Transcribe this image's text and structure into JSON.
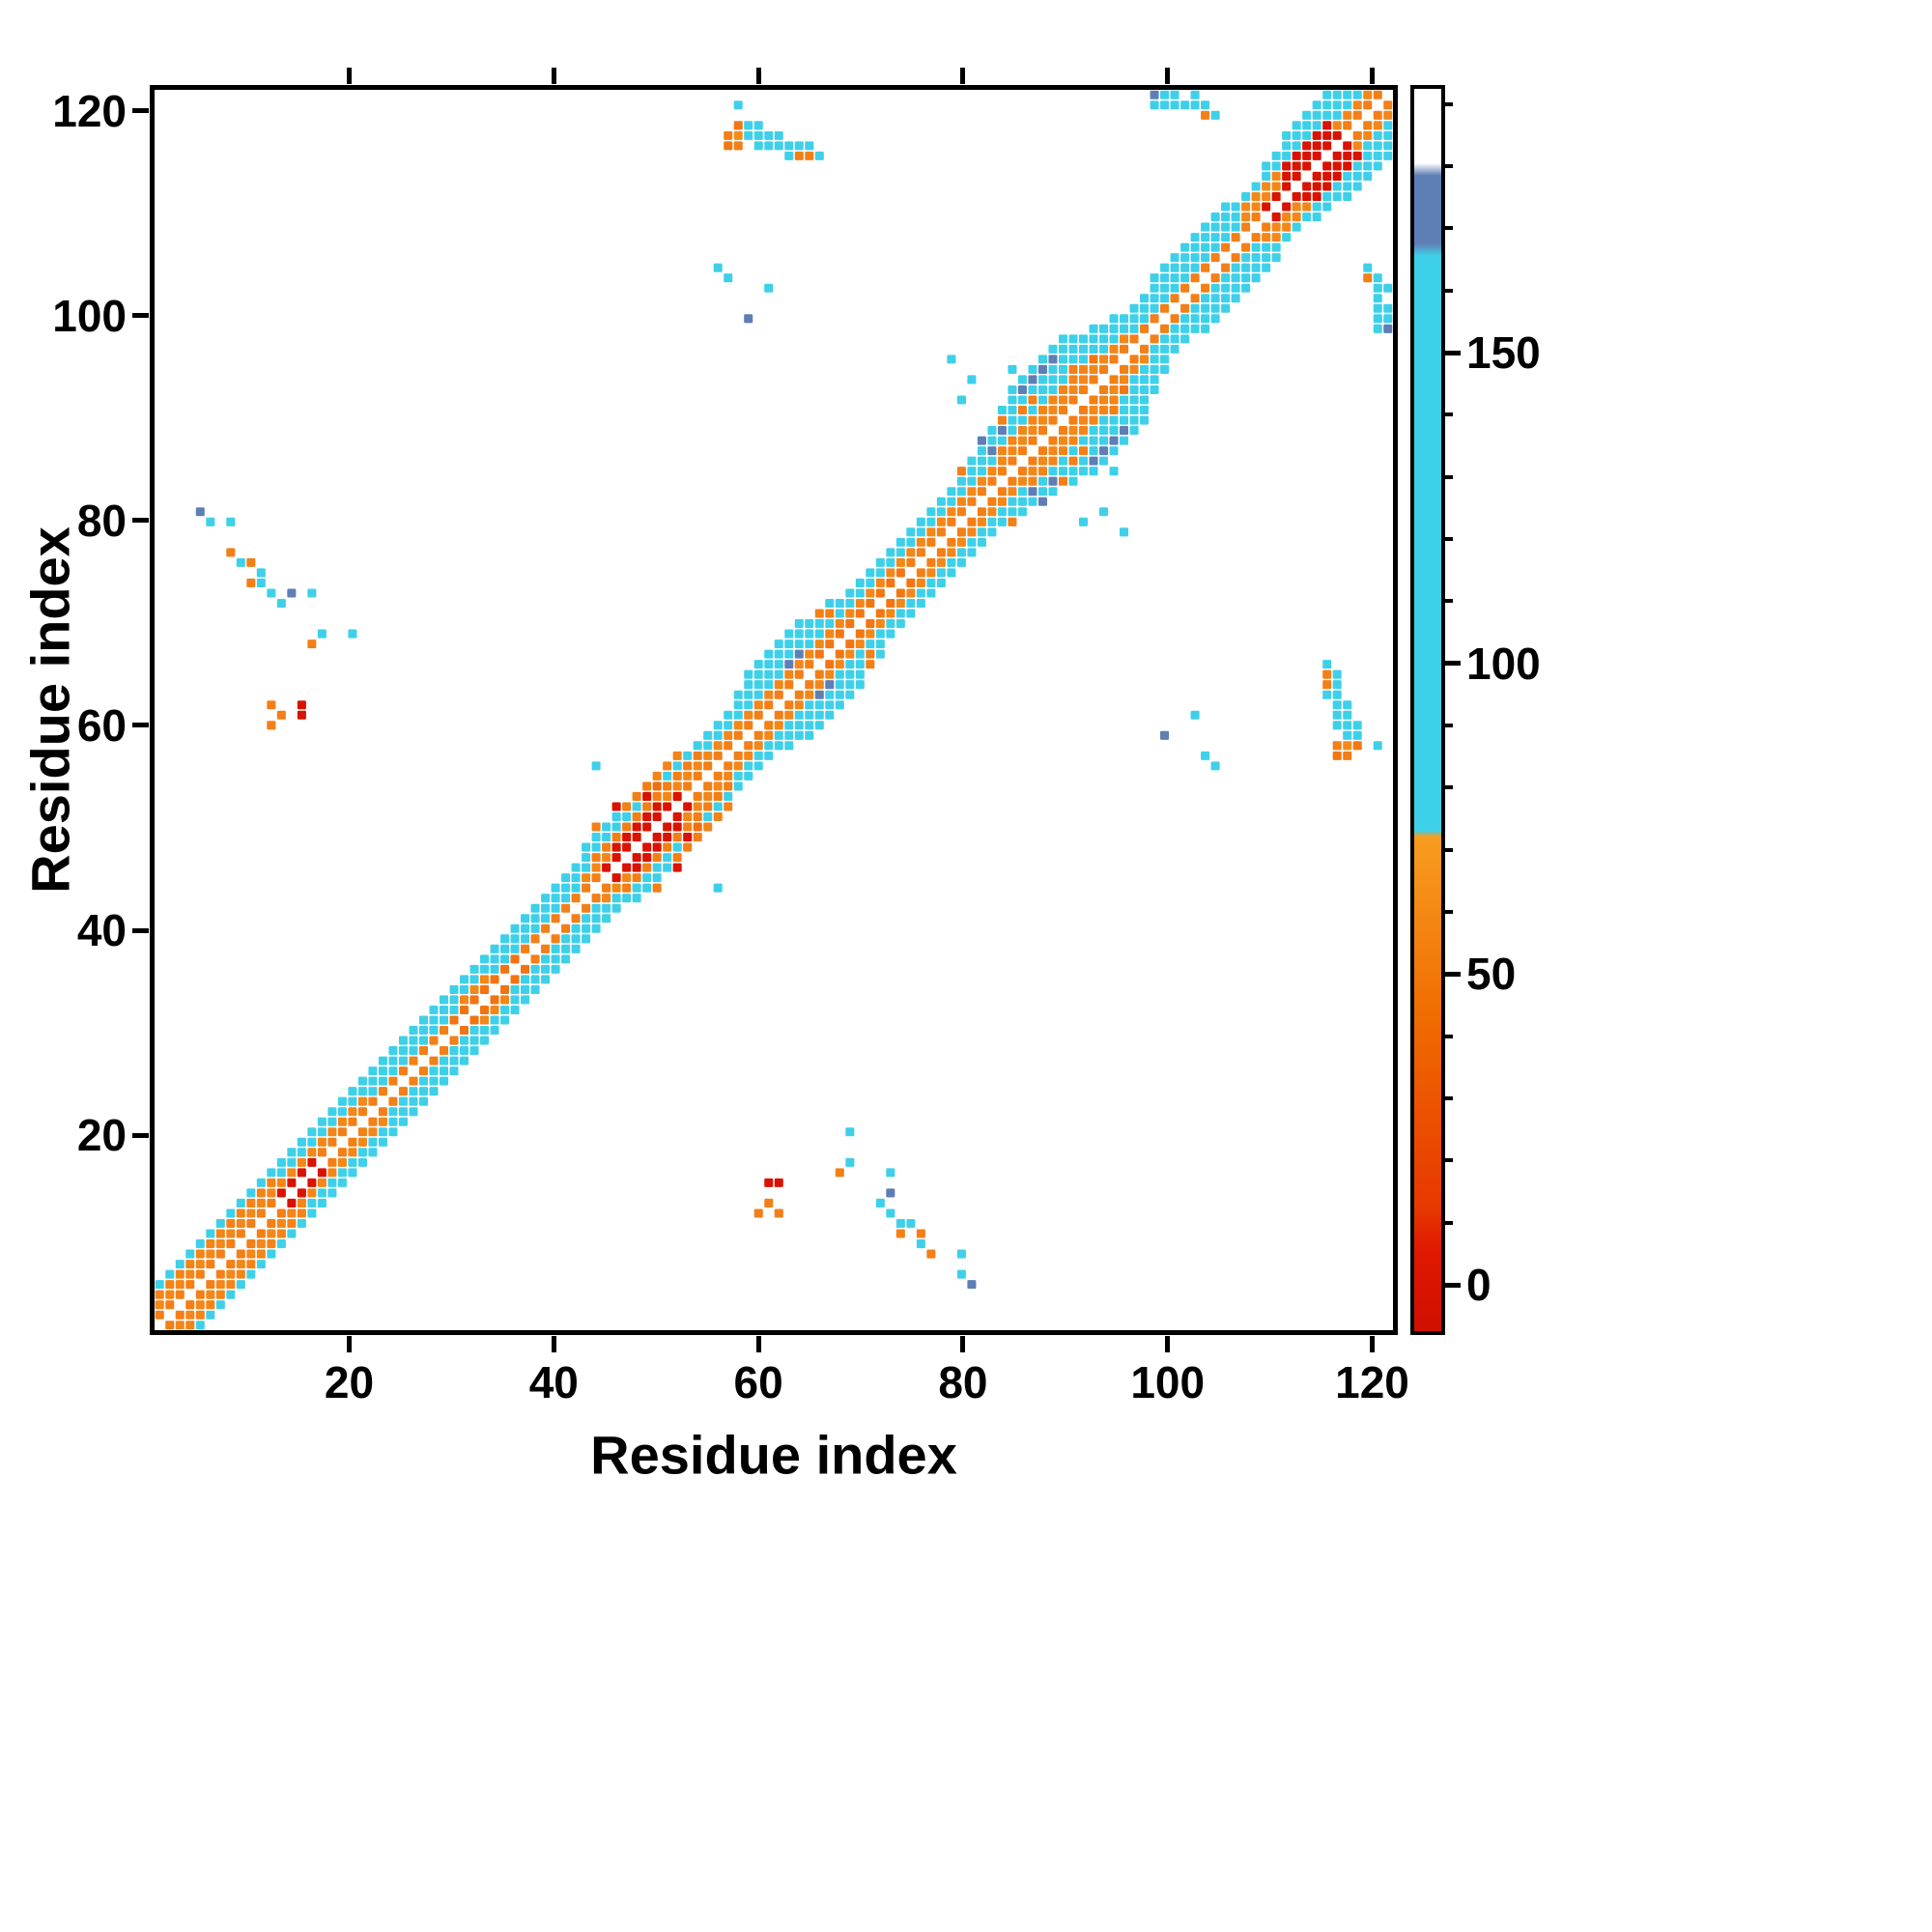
{
  "chart_data": {
    "type": "heatmap",
    "title": "",
    "xlabel": "Residue index",
    "ylabel": "Residue index",
    "n_residues": 122,
    "axis_range": [
      1,
      122
    ],
    "x_ticks": [
      20,
      40,
      60,
      80,
      100,
      120
    ],
    "y_ticks": [
      20,
      40,
      60,
      80,
      100,
      120
    ],
    "colorbar": {
      "label": "",
      "ticks": [
        0,
        50,
        100,
        150
      ],
      "minor_tick_step": 10,
      "value_range": [
        -8,
        193
      ],
      "gradient_stops": [
        [
          -8,
          "#cf0f00"
        ],
        [
          5,
          "#e01800"
        ],
        [
          12,
          "#e73800"
        ],
        [
          40,
          "#ef6700"
        ],
        [
          72,
          "#f89d20"
        ],
        [
          73,
          "#3fd0e9"
        ],
        [
          166,
          "#3fd0e9"
        ],
        [
          168,
          "#5f7eb5"
        ],
        [
          179,
          "#5f7eb5"
        ],
        [
          181,
          "#ffffff"
        ],
        [
          193,
          "#ffffff"
        ]
      ],
      "value_bands": [
        {
          "min": -10,
          "max": 12,
          "color": "#da1200"
        },
        {
          "min": 12,
          "max": 73,
          "color": "#e73800",
          "color2": "#f89d20"
        },
        {
          "min": 73,
          "max": 167,
          "color": "#3fd0e9"
        },
        {
          "min": 167,
          "max": 180,
          "color": "#5f7eb5"
        },
        {
          "min": 180,
          "max": 200,
          "color": "#ffffff"
        }
      ]
    },
    "band_segments": [
      {
        "a": 1,
        "b": 122,
        "off": 4,
        "v": 115
      },
      {
        "a": 1,
        "b": 122,
        "off": 3,
        "v": 112
      },
      {
        "a": 1,
        "b": 12,
        "off": 3,
        "v": 58
      },
      {
        "a": 44,
        "b": 54,
        "off": 3,
        "v": 55
      },
      {
        "a": 84,
        "b": 92,
        "off": 3,
        "v": 58
      },
      {
        "a": 108,
        "b": 111,
        "off": 3,
        "v": 60
      },
      {
        "a": 112,
        "b": 116,
        "off": 3,
        "v": 8
      },
      {
        "a": 1,
        "b": 122,
        "off": 2,
        "v": 60
      },
      {
        "a": 22,
        "b": 30,
        "off": 2,
        "v": 115
      },
      {
        "a": 34,
        "b": 42,
        "off": 2,
        "v": 112
      },
      {
        "a": 97,
        "b": 107,
        "off": 2,
        "v": 115
      },
      {
        "a": 46,
        "b": 50,
        "off": 2,
        "v": 9
      },
      {
        "a": 112,
        "b": 116,
        "off": 2,
        "v": 7
      },
      {
        "a": 1,
        "b": 122,
        "off": 1,
        "v": 55
      },
      {
        "a": 13,
        "b": 16,
        "off": 1,
        "v": 8
      },
      {
        "a": 30,
        "b": 36,
        "off": 1,
        "v": 48
      },
      {
        "a": 45,
        "b": 52,
        "off": 1,
        "v": 10
      },
      {
        "a": 66,
        "b": 74,
        "off": 1,
        "v": 50
      },
      {
        "a": 110,
        "b": 117,
        "off": 1,
        "v": 8
      },
      {
        "a": 58,
        "b": 66,
        "off": 5,
        "v": 115
      },
      {
        "a": 80,
        "b": 95,
        "off": 5,
        "v": 115
      },
      {
        "a": 99,
        "b": 106,
        "off": 5,
        "v": 118
      },
      {
        "a": 110,
        "b": 121,
        "off": 5,
        "v": 115
      },
      {
        "a": 44,
        "b": 52,
        "off": 5,
        "v": 58
      },
      {
        "a": 82,
        "b": 93,
        "off": 6,
        "v": 115
      },
      {
        "a": 59,
        "b": 64,
        "off": 6,
        "v": 118
      },
      {
        "a": 112,
        "b": 119,
        "off": 6,
        "v": 115
      },
      {
        "a": 84,
        "b": 91,
        "off": 7,
        "v": 115
      },
      {
        "a": 86,
        "b": 89,
        "off": 7,
        "v": 172
      },
      {
        "a": 85,
        "b": 90,
        "off": 8,
        "v": 115
      }
    ],
    "cells": [
      [
        57,
        117,
        50
      ],
      [
        57,
        118,
        55
      ],
      [
        58,
        117,
        55
      ],
      [
        58,
        118,
        62
      ],
      [
        58,
        119,
        50
      ],
      [
        59,
        118,
        115
      ],
      [
        59,
        119,
        115
      ],
      [
        60,
        117,
        115
      ],
      [
        60,
        118,
        115
      ],
      [
        60,
        119,
        115
      ],
      [
        61,
        117,
        115
      ],
      [
        61,
        118,
        115
      ],
      [
        62,
        117,
        115
      ],
      [
        62,
        118,
        115
      ],
      [
        63,
        116,
        115
      ],
      [
        63,
        117,
        115
      ],
      [
        64,
        116,
        55
      ],
      [
        64,
        117,
        115
      ],
      [
        65,
        116,
        55
      ],
      [
        65,
        117,
        115
      ],
      [
        66,
        116,
        115
      ],
      [
        58,
        121,
        115
      ],
      [
        99,
        121,
        115
      ],
      [
        99,
        122,
        172
      ],
      [
        100,
        121,
        115
      ],
      [
        100,
        122,
        115
      ],
      [
        101,
        121,
        115
      ],
      [
        101,
        122,
        115
      ],
      [
        102,
        121,
        115
      ],
      [
        103,
        121,
        115
      ],
      [
        103,
        122,
        115
      ],
      [
        104,
        120,
        55
      ],
      [
        104,
        121,
        115
      ],
      [
        105,
        120,
        115
      ],
      [
        5,
        81,
        172
      ],
      [
        6,
        80,
        115
      ],
      [
        8,
        80,
        115
      ],
      [
        8,
        77,
        55
      ],
      [
        9,
        76,
        115
      ],
      [
        10,
        76,
        55
      ],
      [
        10,
        74,
        55
      ],
      [
        11,
        75,
        115
      ],
      [
        11,
        74,
        115
      ],
      [
        12,
        73,
        115
      ],
      [
        13,
        72,
        115
      ],
      [
        14,
        73,
        172
      ],
      [
        16,
        73,
        115
      ],
      [
        12,
        62,
        55
      ],
      [
        15,
        62,
        7
      ],
      [
        15,
        61,
        7
      ],
      [
        12,
        60,
        55
      ],
      [
        13,
        61,
        55
      ],
      [
        16,
        68,
        55
      ],
      [
        17,
        69,
        115
      ],
      [
        20,
        69,
        115
      ],
      [
        57,
        104,
        115
      ],
      [
        56,
        105,
        115
      ],
      [
        61,
        103,
        115
      ],
      [
        59,
        100,
        172
      ],
      [
        44,
        56,
        115
      ],
      [
        79,
        96,
        115
      ],
      [
        81,
        94,
        115
      ],
      [
        80,
        92,
        115
      ],
      [
        43,
        48,
        115
      ],
      [
        44,
        49,
        115
      ],
      [
        44,
        50,
        55
      ],
      [
        45,
        50,
        115
      ],
      [
        46,
        51,
        115
      ],
      [
        46,
        52,
        9
      ],
      [
        47,
        52,
        55
      ],
      [
        48,
        53,
        55
      ],
      [
        49,
        53,
        9
      ],
      [
        49,
        54,
        55
      ],
      [
        50,
        54,
        45
      ],
      [
        62,
        65,
        115
      ],
      [
        63,
        66,
        172
      ],
      [
        64,
        67,
        172
      ],
      [
        65,
        68,
        115
      ],
      [
        65,
        70,
        115
      ],
      [
        66,
        70,
        115
      ],
      [
        66,
        71,
        55
      ],
      [
        67,
        71,
        55
      ],
      [
        67,
        72,
        115
      ],
      [
        80,
        85,
        55
      ],
      [
        81,
        86,
        115
      ],
      [
        82,
        87,
        115
      ],
      [
        82,
        88,
        172
      ],
      [
        83,
        87,
        172
      ],
      [
        83,
        89,
        115
      ],
      [
        84,
        89,
        172
      ],
      [
        84,
        90,
        55
      ],
      [
        85,
        90,
        115
      ],
      [
        85,
        92,
        115
      ],
      [
        86,
        91,
        55
      ],
      [
        86,
        92,
        115
      ],
      [
        87,
        92,
        55
      ],
      [
        88,
        93,
        115
      ],
      [
        89,
        94,
        115
      ],
      [
        90,
        95,
        115
      ],
      [
        91,
        95,
        55
      ],
      [
        92,
        96,
        115
      ],
      [
        85,
        95,
        115
      ],
      [
        88,
        95,
        172
      ],
      [
        93,
        96,
        50
      ]
    ]
  }
}
